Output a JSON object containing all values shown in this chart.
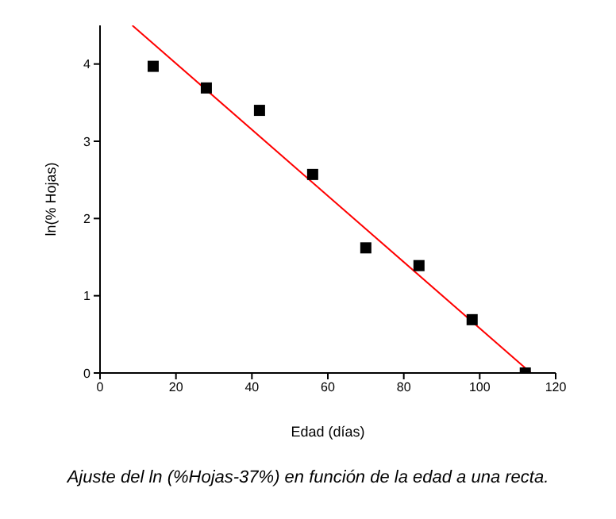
{
  "chart_data": {
    "type": "scatter",
    "xlabel": "Edad (días)",
    "ylabel": "ln(% Hojas)",
    "annotations": [
      "Ajuste del ln (%Hojas-37%) en función de la edad a una recta."
    ],
    "grid": false,
    "legend": false,
    "xlim": [
      0,
      120
    ],
    "xticks": [
      0,
      20,
      40,
      60,
      80,
      100,
      120
    ],
    "ylim": [
      0,
      4.5
    ],
    "yticks": [
      0,
      1,
      2,
      3,
      4
    ],
    "series": [
      {
        "marker": "square",
        "color": "#000000",
        "x": [
          14,
          28,
          42,
          56,
          70,
          84,
          98,
          112
        ],
        "values": [
          3.97,
          3.69,
          3.4,
          2.57,
          1.62,
          1.39,
          0.69,
          0.0
        ]
      },
      {
        "type": "line",
        "color": "#ff0000",
        "x": [
          8.5,
          113.5
        ],
        "values": [
          4.5,
          0
        ]
      }
    ]
  }
}
